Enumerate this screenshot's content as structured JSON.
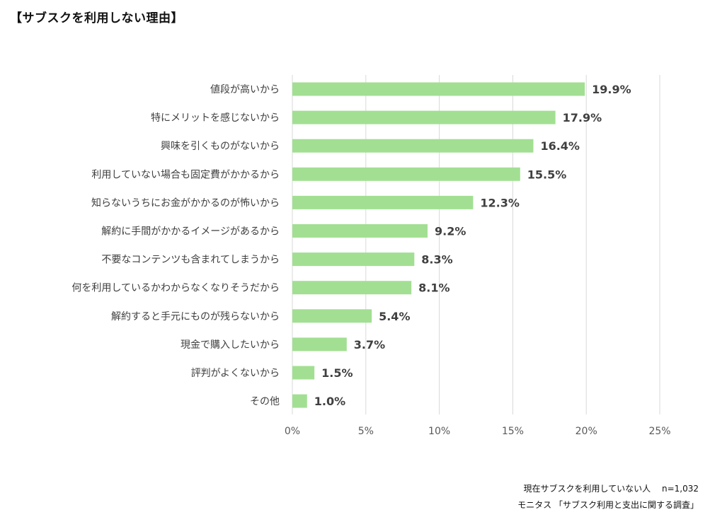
{
  "title": "【サブスクを利用しない理由】",
  "notes": {
    "sample": "現在サブスクを利用していない人　 n=1,032",
    "source": "モニタス 「サブスク利用と支出に関する調査」"
  },
  "colors": {
    "bar": "#a2df92",
    "grid": "#d9d9d9",
    "text": "#404040"
  },
  "chart_data": {
    "type": "bar",
    "orientation": "horizontal",
    "title": "【サブスクを利用しない理由】",
    "categories": [
      "値段が高いから",
      "特にメリットを感じないから",
      "興味を引くものがないから",
      "利用していない場合も固定費がかかるから",
      "知らないうちにお金がかかるのが怖いから",
      "解約に手間がかかるイメージがあるから",
      "不要なコンテンツも含まれてしまうから",
      "何を利用しているかわからなくなりそうだから",
      "解約すると手元にものが残らないから",
      "現金で購入したいから",
      "評判がよくないから",
      "その他"
    ],
    "values": [
      19.9,
      17.9,
      16.4,
      15.5,
      12.3,
      9.2,
      8.3,
      8.1,
      5.4,
      3.7,
      1.5,
      1.0
    ],
    "value_labels": [
      "19.9%",
      "17.9%",
      "16.4%",
      "15.5%",
      "12.3%",
      "9.2%",
      "8.3%",
      "8.1%",
      "5.4%",
      "3.7%",
      "1.5%",
      "1.0%"
    ],
    "xlim": [
      0,
      25
    ],
    "xticks": [
      0,
      5,
      10,
      15,
      20,
      25
    ],
    "xtick_labels": [
      "0%",
      "5%",
      "10%",
      "15%",
      "20%",
      "25%"
    ],
    "grid": true,
    "legend": "none"
  }
}
